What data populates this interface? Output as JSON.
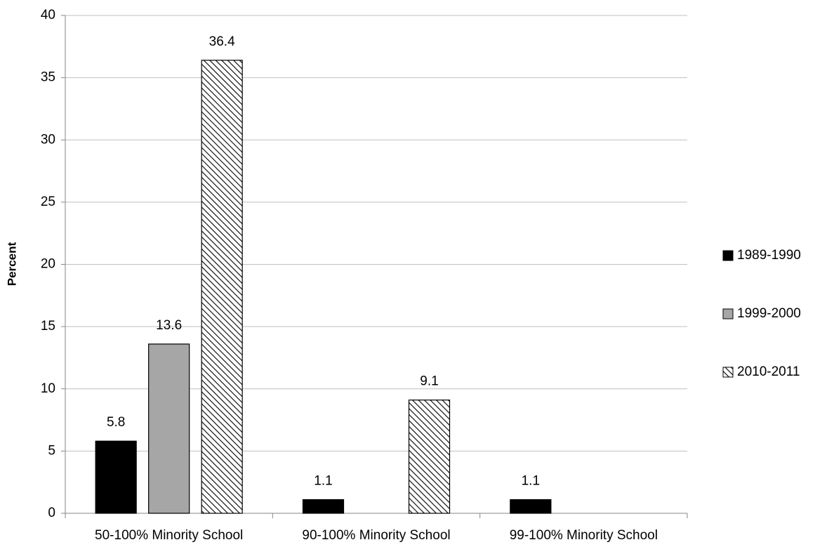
{
  "chart_data": {
    "type": "bar",
    "y_label": "Percent",
    "categories": [
      "50-100% Minority School",
      "90-100% Minority School",
      "99-100% Minority School"
    ],
    "series": [
      {
        "name": "1989-1990",
        "color": "#000000",
        "values": [
          5.8,
          1.1,
          1.1
        ]
      },
      {
        "name": "1999-2000",
        "color": "#a6a6a6",
        "values": [
          13.6,
          null,
          null
        ]
      },
      {
        "name": "2010-2011",
        "color": "#000000",
        "pattern": "hatch",
        "values": [
          36.4,
          9.1,
          null
        ]
      }
    ],
    "ylim": [
      0,
      40
    ],
    "yticks": [
      0,
      5,
      10,
      15,
      20,
      25,
      30,
      35,
      40
    ],
    "grid": true,
    "legend": "right"
  }
}
